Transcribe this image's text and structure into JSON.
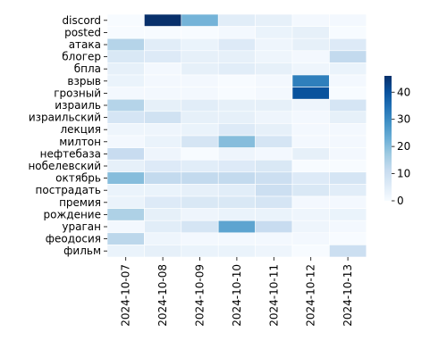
{
  "chart_data": {
    "type": "heatmap",
    "x_categories": [
      "2024-10-07",
      "2024-10-08",
      "2024-10-09",
      "2024-10-10",
      "2024-10-11",
      "2024-10-12",
      "2024-10-13"
    ],
    "y_categories": [
      "discord",
      "posted",
      "атака",
      "блогер",
      "бпла",
      "взрыв",
      "грозный",
      "израиль",
      "израильский",
      "лекция",
      "милтон",
      "нефтебаза",
      "нобелевский",
      "октябрь",
      "пострадать",
      "премия",
      "рождение",
      "ураган",
      "феодосия",
      "фильм"
    ],
    "values": [
      [
        0,
        46,
        22,
        5,
        4,
        1,
        1
      ],
      [
        0,
        0,
        0,
        1,
        3,
        4,
        0
      ],
      [
        14,
        5,
        3,
        6,
        2,
        4,
        6
      ],
      [
        7,
        6,
        4,
        4,
        2,
        1,
        12
      ],
      [
        4,
        1,
        4,
        5,
        4,
        2,
        3
      ],
      [
        3,
        1,
        1,
        0,
        1,
        32,
        1
      ],
      [
        1,
        1,
        1,
        0,
        1,
        40,
        0
      ],
      [
        14,
        4,
        5,
        4,
        4,
        2,
        8
      ],
      [
        8,
        9,
        4,
        4,
        2,
        1,
        4
      ],
      [
        2,
        2,
        3,
        6,
        4,
        1,
        1
      ],
      [
        1,
        3,
        8,
        20,
        8,
        1,
        1
      ],
      [
        11,
        2,
        0,
        2,
        1,
        4,
        1
      ],
      [
        4,
        6,
        5,
        6,
        7,
        0,
        0
      ],
      [
        20,
        12,
        12,
        12,
        10,
        6,
        8
      ],
      [
        3,
        3,
        4,
        5,
        10,
        7,
        5
      ],
      [
        3,
        6,
        7,
        7,
        8,
        1,
        1
      ],
      [
        15,
        4,
        2,
        3,
        3,
        2,
        3
      ],
      [
        1,
        5,
        8,
        25,
        11,
        2,
        1
      ],
      [
        13,
        2,
        1,
        1,
        1,
        1,
        0
      ],
      [
        3,
        4,
        3,
        3,
        2,
        0,
        10
      ]
    ],
    "colorbar": {
      "min": 0,
      "max": 46,
      "ticks": [
        0,
        10,
        20,
        30,
        40
      ]
    },
    "colormap": [
      "#f7fbff",
      "#deebf7",
      "#c6dbef",
      "#9ecae1",
      "#6baed6",
      "#4292c6",
      "#2171b5",
      "#08519c",
      "#08306b"
    ],
    "cell_border_color": "#ffffff"
  }
}
